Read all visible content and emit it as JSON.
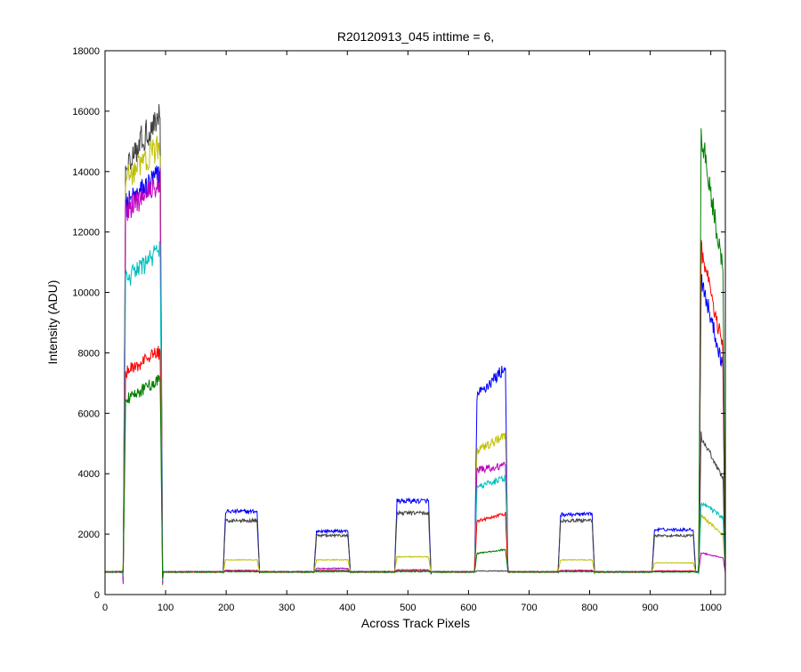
{
  "chart_data": {
    "type": "line",
    "title": "R20120913_045 inttime = 6,",
    "xlabel": "Across Track Pixels",
    "ylabel": "Intensity (ADU)",
    "xlim": [
      0,
      1024
    ],
    "ylim": [
      0,
      18000
    ],
    "xticks": [
      0,
      100,
      200,
      300,
      400,
      500,
      600,
      700,
      800,
      900,
      1000
    ],
    "yticks": [
      0,
      2000,
      4000,
      6000,
      8000,
      10000,
      12000,
      14000,
      16000,
      18000
    ],
    "grid": false,
    "legend": "none",
    "baseline": 750,
    "segments": [
      {
        "start": 30,
        "end": 95
      },
      {
        "start": 195,
        "end": 255
      },
      {
        "start": 345,
        "end": 405
      },
      {
        "start": 478,
        "end": 538
      },
      {
        "start": 610,
        "end": 665
      },
      {
        "start": 748,
        "end": 808
      },
      {
        "start": 903,
        "end": 975
      },
      {
        "start": 980,
        "end": 1024
      }
    ],
    "series": [
      {
        "color": "#0000ff",
        "levels": [
          [
            12800,
            14000
          ],
          2750,
          2100,
          3100,
          [
            6500,
            7600
          ],
          2650,
          2150,
          [
            10800,
            7200
          ]
        ]
      },
      {
        "color": "#404040",
        "levels": [
          [
            14200,
            16000
          ],
          2450,
          1950,
          2700,
          780,
          2450,
          1950,
          [
            5400,
            3700
          ]
        ]
      },
      {
        "color": "#bfbf00",
        "levels": [
          [
            13700,
            14900
          ],
          1150,
          1150,
          1250,
          [
            4700,
            5300
          ],
          1150,
          1050,
          [
            2700,
            1900
          ]
        ]
      },
      {
        "color": "#bf00bf",
        "levels": [
          [
            12600,
            13800
          ],
          800,
          870,
          820,
          [
            4100,
            4300
          ],
          800,
          780,
          [
            1400,
            1200
          ]
        ]
      },
      {
        "color": "#00bfbf",
        "levels": [
          [
            10300,
            11500
          ],
          780,
          820,
          800,
          [
            3500,
            3900
          ],
          780,
          760,
          [
            3100,
            2500
          ]
        ]
      },
      {
        "color": "#ff0000",
        "levels": [
          [
            7300,
            8100
          ],
          780,
          790,
          790,
          [
            2400,
            2700
          ],
          780,
          770,
          [
            11800,
            7800
          ]
        ]
      },
      {
        "color": "#007f00",
        "levels": [
          [
            6400,
            7200
          ],
          760,
          760,
          760,
          [
            1350,
            1500
          ],
          760,
          750,
          [
            15800,
            10300
          ]
        ]
      }
    ]
  }
}
